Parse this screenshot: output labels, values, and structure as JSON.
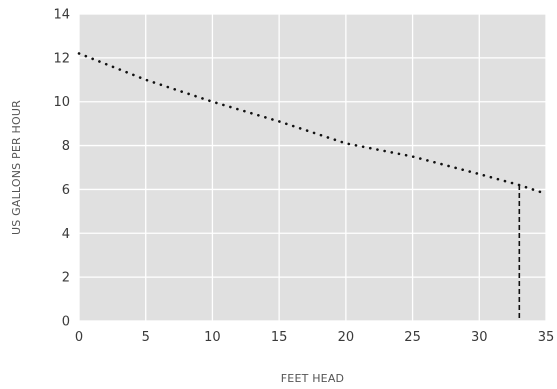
{
  "chart_data": {
    "type": "line",
    "title": "",
    "xlabel": "FEET HEAD",
    "ylabel": "US GALLONS PER HOUR",
    "xlim": [
      0,
      35
    ],
    "ylim": [
      0,
      14
    ],
    "x_ticks": [
      0,
      5,
      10,
      15,
      20,
      25,
      30,
      35
    ],
    "y_ticks": [
      0,
      2,
      4,
      6,
      8,
      10,
      12,
      14
    ],
    "grid": true,
    "plot_background": "#e0e0e0",
    "grid_color": "#ffffff",
    "series": [
      {
        "style": "dotted",
        "color": "#111111",
        "x": [
          0,
          5,
          10,
          15,
          20,
          25,
          30,
          33,
          35
        ],
        "y": [
          12.2,
          11.0,
          10.0,
          9.1,
          8.1,
          7.5,
          6.7,
          6.2,
          5.8
        ]
      }
    ],
    "annotations": [
      {
        "type": "vertical-dashed-line",
        "color": "#111111",
        "x": 33,
        "y_from": 0,
        "y_to": 6.2
      }
    ]
  }
}
